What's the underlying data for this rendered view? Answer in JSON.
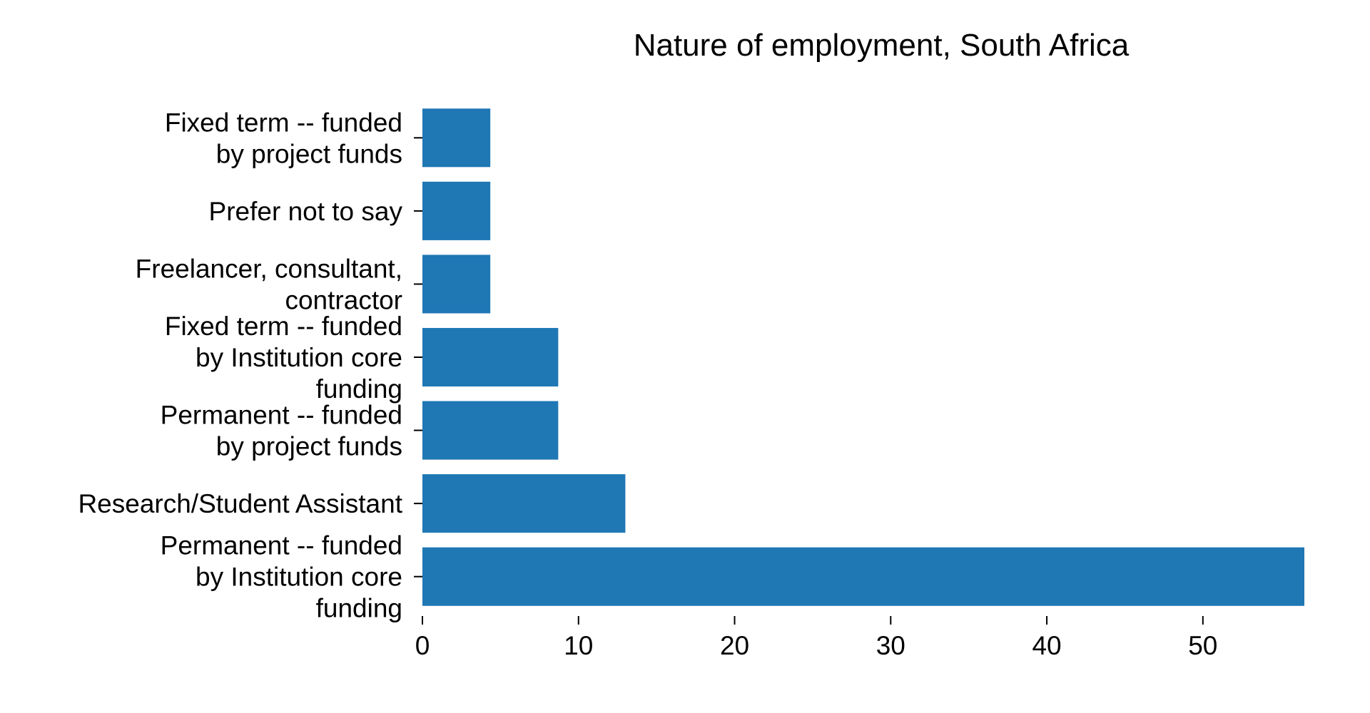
{
  "chart_data": {
    "type": "bar",
    "orientation": "horizontal",
    "title": "Nature of employment, South Africa",
    "xlabel": "",
    "ylabel": "",
    "categories": [
      [
        "Permanent -- funded",
        "by Institution core",
        "funding"
      ],
      [
        "Research/Student Assistant"
      ],
      [
        "Permanent -- funded",
        "by project funds"
      ],
      [
        "Fixed term -- funded",
        "by Institution core",
        "funding"
      ],
      [
        "Freelancer, consultant,",
        "contractor"
      ],
      [
        "Prefer not to say"
      ],
      [
        "Fixed term -- funded",
        "by project funds"
      ]
    ],
    "values": [
      56.5,
      13.0,
      8.7,
      8.7,
      4.35,
      4.35,
      4.35
    ],
    "xlim": [
      0,
      56.5
    ],
    "xticks": [
      0,
      10,
      20,
      30,
      40,
      50
    ],
    "bar_color": "#1f77b4",
    "grid": false
  }
}
